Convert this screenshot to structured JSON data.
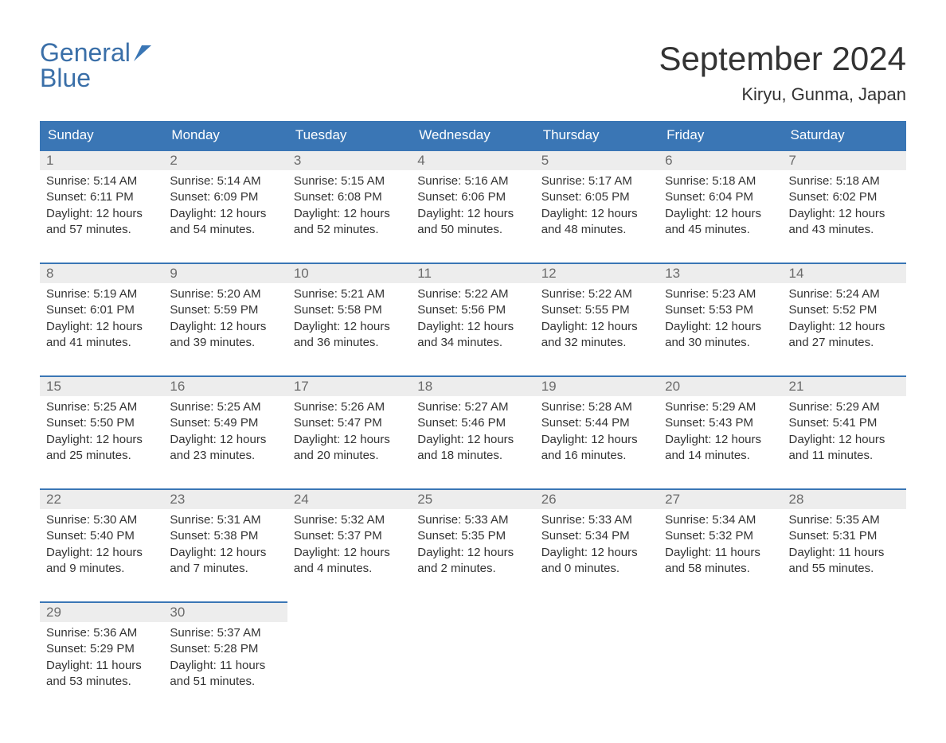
{
  "logo": {
    "line1": "General",
    "line2": "Blue"
  },
  "header": {
    "month_title": "September 2024",
    "location": "Kiryu, Gunma, Japan"
  },
  "colors": {
    "header_bg": "#3a76b5",
    "header_text": "#ffffff",
    "daynum_bg": "#ededed",
    "daynum_text": "#6b6b6b",
    "body_text": "#333333",
    "logo_color": "#3a6fa8",
    "border_top": "#3a76b5"
  },
  "weekdays": [
    "Sunday",
    "Monday",
    "Tuesday",
    "Wednesday",
    "Thursday",
    "Friday",
    "Saturday"
  ],
  "labels": {
    "sunrise": "Sunrise:",
    "sunset": "Sunset:",
    "daylight": "Daylight:"
  },
  "days": [
    {
      "n": "1",
      "sunrise": "5:14 AM",
      "sunset": "6:11 PM",
      "daylight": "12 hours and 57 minutes."
    },
    {
      "n": "2",
      "sunrise": "5:14 AM",
      "sunset": "6:09 PM",
      "daylight": "12 hours and 54 minutes."
    },
    {
      "n": "3",
      "sunrise": "5:15 AM",
      "sunset": "6:08 PM",
      "daylight": "12 hours and 52 minutes."
    },
    {
      "n": "4",
      "sunrise": "5:16 AM",
      "sunset": "6:06 PM",
      "daylight": "12 hours and 50 minutes."
    },
    {
      "n": "5",
      "sunrise": "5:17 AM",
      "sunset": "6:05 PM",
      "daylight": "12 hours and 48 minutes."
    },
    {
      "n": "6",
      "sunrise": "5:18 AM",
      "sunset": "6:04 PM",
      "daylight": "12 hours and 45 minutes."
    },
    {
      "n": "7",
      "sunrise": "5:18 AM",
      "sunset": "6:02 PM",
      "daylight": "12 hours and 43 minutes."
    },
    {
      "n": "8",
      "sunrise": "5:19 AM",
      "sunset": "6:01 PM",
      "daylight": "12 hours and 41 minutes."
    },
    {
      "n": "9",
      "sunrise": "5:20 AM",
      "sunset": "5:59 PM",
      "daylight": "12 hours and 39 minutes."
    },
    {
      "n": "10",
      "sunrise": "5:21 AM",
      "sunset": "5:58 PM",
      "daylight": "12 hours and 36 minutes."
    },
    {
      "n": "11",
      "sunrise": "5:22 AM",
      "sunset": "5:56 PM",
      "daylight": "12 hours and 34 minutes."
    },
    {
      "n": "12",
      "sunrise": "5:22 AM",
      "sunset": "5:55 PM",
      "daylight": "12 hours and 32 minutes."
    },
    {
      "n": "13",
      "sunrise": "5:23 AM",
      "sunset": "5:53 PM",
      "daylight": "12 hours and 30 minutes."
    },
    {
      "n": "14",
      "sunrise": "5:24 AM",
      "sunset": "5:52 PM",
      "daylight": "12 hours and 27 minutes."
    },
    {
      "n": "15",
      "sunrise": "5:25 AM",
      "sunset": "5:50 PM",
      "daylight": "12 hours and 25 minutes."
    },
    {
      "n": "16",
      "sunrise": "5:25 AM",
      "sunset": "5:49 PM",
      "daylight": "12 hours and 23 minutes."
    },
    {
      "n": "17",
      "sunrise": "5:26 AM",
      "sunset": "5:47 PM",
      "daylight": "12 hours and 20 minutes."
    },
    {
      "n": "18",
      "sunrise": "5:27 AM",
      "sunset": "5:46 PM",
      "daylight": "12 hours and 18 minutes."
    },
    {
      "n": "19",
      "sunrise": "5:28 AM",
      "sunset": "5:44 PM",
      "daylight": "12 hours and 16 minutes."
    },
    {
      "n": "20",
      "sunrise": "5:29 AM",
      "sunset": "5:43 PM",
      "daylight": "12 hours and 14 minutes."
    },
    {
      "n": "21",
      "sunrise": "5:29 AM",
      "sunset": "5:41 PM",
      "daylight": "12 hours and 11 minutes."
    },
    {
      "n": "22",
      "sunrise": "5:30 AM",
      "sunset": "5:40 PM",
      "daylight": "12 hours and 9 minutes."
    },
    {
      "n": "23",
      "sunrise": "5:31 AM",
      "sunset": "5:38 PM",
      "daylight": "12 hours and 7 minutes."
    },
    {
      "n": "24",
      "sunrise": "5:32 AM",
      "sunset": "5:37 PM",
      "daylight": "12 hours and 4 minutes."
    },
    {
      "n": "25",
      "sunrise": "5:33 AM",
      "sunset": "5:35 PM",
      "daylight": "12 hours and 2 minutes."
    },
    {
      "n": "26",
      "sunrise": "5:33 AM",
      "sunset": "5:34 PM",
      "daylight": "12 hours and 0 minutes."
    },
    {
      "n": "27",
      "sunrise": "5:34 AM",
      "sunset": "5:32 PM",
      "daylight": "11 hours and 58 minutes."
    },
    {
      "n": "28",
      "sunrise": "5:35 AM",
      "sunset": "5:31 PM",
      "daylight": "11 hours and 55 minutes."
    },
    {
      "n": "29",
      "sunrise": "5:36 AM",
      "sunset": "5:29 PM",
      "daylight": "11 hours and 53 minutes."
    },
    {
      "n": "30",
      "sunrise": "5:37 AM",
      "sunset": "5:28 PM",
      "daylight": "11 hours and 51 minutes."
    }
  ],
  "layout": {
    "first_day_offset": 0,
    "days_in_month": 30,
    "cols": 7
  }
}
